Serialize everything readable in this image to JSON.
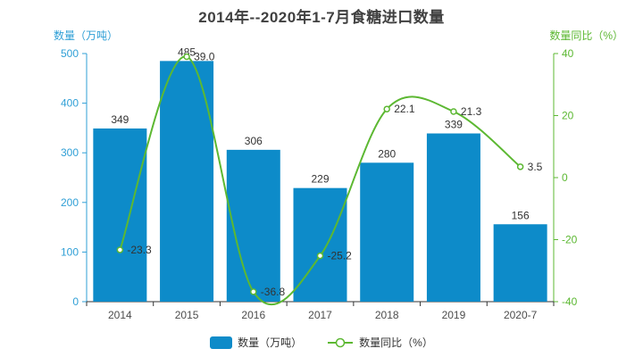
{
  "title": "2014年--2020年1-7月食糖进口数量",
  "chart_data": {
    "type": "bar",
    "subtype": "bar-line-combo",
    "categories": [
      "2014",
      "2015",
      "2016",
      "2017",
      "2018",
      "2019",
      "2020-7"
    ],
    "series": [
      {
        "name": "数量（万吨）",
        "type": "bar",
        "axis": "left",
        "values": [
          349,
          485,
          306,
          229,
          280,
          339,
          156
        ],
        "labels": [
          "349",
          "485",
          "306",
          "229",
          "280",
          "339",
          "156"
        ],
        "color": "#0d8bc9"
      },
      {
        "name": "数量同比（%）",
        "type": "line",
        "axis": "right",
        "smooth": true,
        "values": [
          -23.3,
          39.0,
          -36.8,
          -25.2,
          22.1,
          21.3,
          3.5
        ],
        "labels": [
          "-23.3",
          "39.0",
          "-36.8",
          "-25.2",
          "22.1",
          "21.3",
          "3.5"
        ],
        "color": "#5cb832",
        "marker": "empty-circle"
      }
    ],
    "left_axis": {
      "name": "数量（万吨）",
      "min": 0,
      "max": 500,
      "ticks": [
        0,
        100,
        200,
        300,
        400,
        500
      ],
      "color": "#2f9fd6"
    },
    "right_axis": {
      "name": "数量同比（%）",
      "min": -40,
      "max": 40,
      "ticks": [
        -40,
        -20,
        0,
        20,
        40
      ],
      "color": "#5cb832"
    },
    "x_axis": {
      "color": "#333333",
      "label_color": "#4d4d4d"
    },
    "grid": false,
    "legend_position": "bottom",
    "legend": [
      "数量（万吨）",
      "数量同比（%）"
    ],
    "value_label_color": "#333333",
    "title": "2014年--2020年1-7月食糖进口数量",
    "xlabel": "",
    "ylabel_left": "数量（万吨）",
    "ylabel_right": "数量同比（%）"
  }
}
